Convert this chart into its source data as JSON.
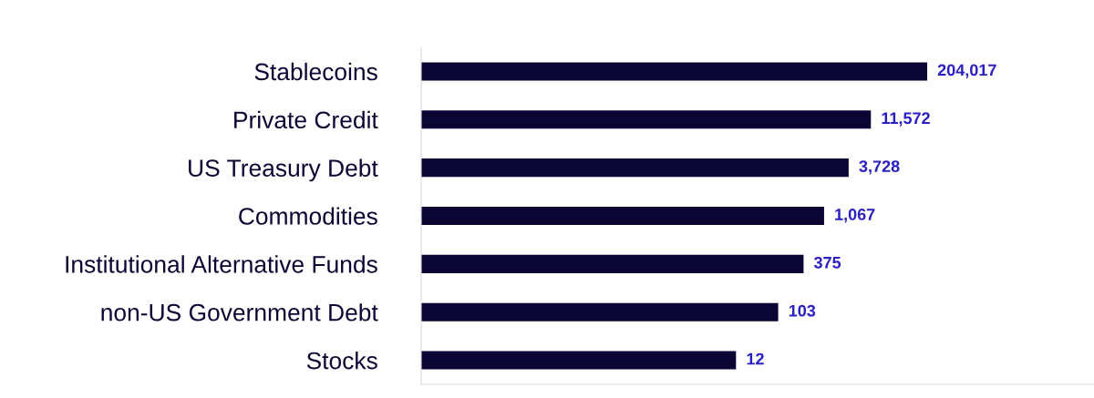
{
  "chart_data": {
    "type": "bar",
    "orientation": "horizontal",
    "categories": [
      "Stablecoins",
      "Private Credit",
      "US Treasury Debt",
      "Commodities",
      "Institutional Alternative Funds",
      "non-US Government Debt",
      "Stocks"
    ],
    "values": [
      204017,
      11572,
      3728,
      1067,
      375,
      103,
      12
    ],
    "value_labels": [
      "204,017",
      "11,572",
      "3,728",
      "1,067",
      "375",
      "103",
      "12"
    ],
    "color": "#0b0534",
    "log": "x",
    "xlim": [
      1.3e-06,
      1000000000.0
    ],
    "tick_labels": "y",
    "grid": false,
    "legend": false
  }
}
